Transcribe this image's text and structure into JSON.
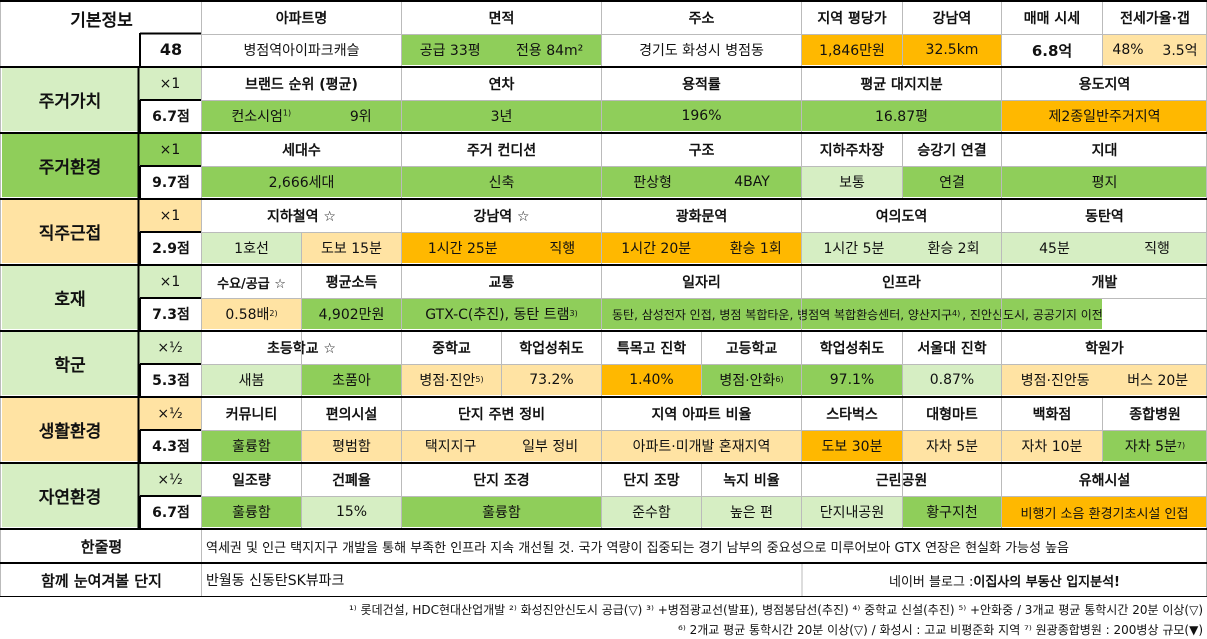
{
  "colors": {
    "green": "#8fce5a",
    "light_green": "#d6eec3",
    "orange": "#ffb800",
    "light_orange": "#ffe3a3",
    "tan": "#ffd984",
    "grey": "#f0f0f0"
  },
  "basic": {
    "label": "기본정보",
    "number": "48",
    "h_apt": "아파트명",
    "h_area": "면적",
    "h_addr": "주소",
    "h_price": "지역 평당가",
    "h_gn": "강남역",
    "h_sale": "매매 시세",
    "h_jeonse": "전세가율·갭",
    "apt": "병점역아이파크캐슬",
    "area_supply": "공급 33평",
    "area_excl": "전용 84m²",
    "addr": "경기도 화성시 병점동",
    "price": "1,846만원",
    "gn": "32.5km",
    "sale": "6.8억",
    "jeonse_rate": "48%",
    "gap": "3.5억"
  },
  "s1": {
    "label": "주거가치",
    "mult": "×1",
    "score": "6.7점",
    "h1": "브랜드 순위 (평균)",
    "h2": "연차",
    "h3": "용적률",
    "h4": "평균 대지지분",
    "h5": "용도지역",
    "v1a": "컨소시엄",
    "v1a_sup": "1)",
    "v1b": "9위",
    "v2": "3년",
    "v3": "196%",
    "v4": "16.87평",
    "v5": "제2종일반주거지역"
  },
  "s2": {
    "label": "주거환경",
    "mult": "×1",
    "score": "9.7점",
    "h1": "세대수",
    "h2": "주거 컨디션",
    "h3": "구조",
    "h4": "지하주차장",
    "h5": "승강기 연결",
    "h6": "지대",
    "v1": "2,666세대",
    "v2": "신축",
    "v3a": "판상형",
    "v3b": "4BAY",
    "v4": "보통",
    "v5": "연결",
    "v6": "평지"
  },
  "s3": {
    "label": "직주근접",
    "mult": "×1",
    "score": "2.9점",
    "h1": "지하철역 ☆",
    "h2": "강남역 ☆",
    "h3": "광화문역",
    "h4": "여의도역",
    "h5": "동탄역",
    "v1a": "1호선",
    "v1b": "도보 15분",
    "v2a": "1시간 25분",
    "v2b": "직행",
    "v3a": "1시간 20분",
    "v3b": "환승 1회",
    "v4a": "1시간 5분",
    "v4b": "환승 2회",
    "v5a": "45분",
    "v5b": "직행"
  },
  "s4": {
    "label": "호재",
    "mult": "×1",
    "score": "7.3점",
    "h1": "수요/공급 ☆",
    "h2": "평균소득",
    "h3": "교통",
    "h4": "일자리",
    "h5": "인프라",
    "h6": "개발",
    "v1": "0.58배",
    "v1_sup": "2)",
    "v2": "4,902만원",
    "v3": "GTX-C(추진), 동탄 트램",
    "v3_sup": "3)",
    "v4": "동탄, 삼성전자 인접, 병점 복합타운, 병점역 복합환승센터, 양산지구",
    "v4_sup": "4)",
    "v5": ", 진안신도시, 공공기지 이전"
  },
  "s5": {
    "label": "학군",
    "mult": "×½",
    "score": "5.3점",
    "h1": "초등학교 ☆",
    "h2": "중학교",
    "h3": "학업성취도",
    "h4": "특목고 진학",
    "h5": "고등학교",
    "h6": "학업성취도",
    "h7": "서울대 진학",
    "h8": "학원가",
    "v1a": "새봄",
    "v1b": "초품아",
    "v2": "병점·진안",
    "v2_sup": "5)",
    "v3": "73.2%",
    "v4": "1.40%",
    "v5": "병점·안화",
    "v5_sup": "6)",
    "v6": "97.1%",
    "v7": "0.87%",
    "v8a": "병점·진안동",
    "v8b": "버스 20분"
  },
  "s6": {
    "label": "생활환경",
    "mult": "×½",
    "score": "4.3점",
    "h1": "커뮤니티",
    "h2": "편의시설",
    "h3": "단지 주변 정비",
    "h4": "지역 아파트 비율",
    "h5": "스타벅스",
    "h6": "대형마트",
    "h7": "백화점",
    "h8": "종합병원",
    "v1": "훌륭함",
    "v2": "평범함",
    "v3a": "택지지구",
    "v3b": "일부 정비",
    "v4": "아파트·미개발 혼재지역",
    "v5": "도보 30분",
    "v6": "자차 5분",
    "v7": "자차 10분",
    "v8": "자차 5분",
    "v8_sup": "7)"
  },
  "s7": {
    "label": "자연환경",
    "mult": "×½",
    "score": "6.7점",
    "h1": "일조량",
    "h2": "건폐율",
    "h3": "단지 조경",
    "h4": "단지 조망",
    "h5": "녹지 비율",
    "h6": "근린공원",
    "h7": "유해시설",
    "v1": "훌륭함",
    "v2": "15%",
    "v3": "훌륭함",
    "v4": "준수함",
    "v5": "높은 편",
    "v6a": "단지내공원",
    "v6b": "황구지천",
    "v7": "비행기 소음  환경기초시설 인접"
  },
  "summary": {
    "label": "한줄평",
    "text": "역세권 및 인근 택지지구 개발을 통해 부족한 인프라 지속 개선될 것. 국가 역량이 집중되는 경기 남부의 중요성으로 미루어보아 GTX 연장은 현실화 가능성 높음"
  },
  "related": {
    "label": "함께 눈여겨볼 단지",
    "text": "반월동 신동탄SK뷰파크",
    "blog_prefix": "네이버 블로그 : ",
    "blog_name": "이집사의 부동산 입지분석!"
  },
  "footnotes": {
    "line1": "¹⁾ 롯데건설, HDC현대산업개발  ²⁾ 화성진안신도시 공급(▽)  ³⁾ +병점광교선(발표), 병점봉담선(추진)  ⁴⁾ 중학교 신설(추진)  ⁵⁾ +안화중 / 3개교 평균 통학시간 20분 이상(▽)",
    "line2": "⁶⁾ 2개교 평균 통학시간 20분 이상(▽) / 화성시 : 고교 비평준화 지역  ⁷⁾ 원광종합병원 : 200병상 규모(▼)"
  }
}
